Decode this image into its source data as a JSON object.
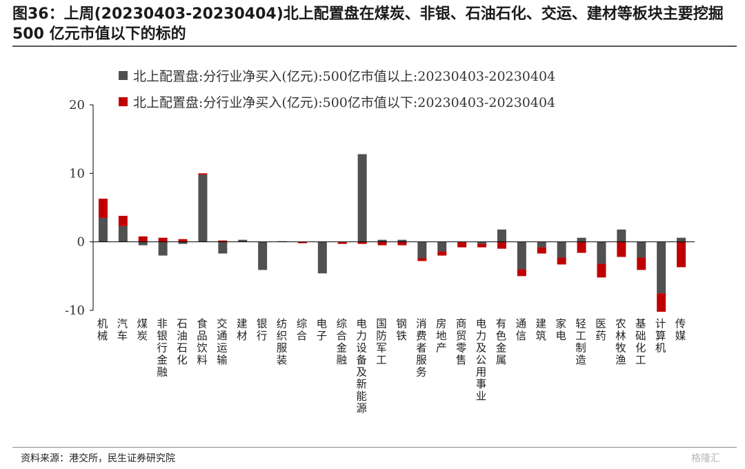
{
  "title": "图36：上周(20230403-20230404)北上配置盘在煤炭、非银、石油石化、交运、建材等板块主要挖掘 500 亿元市值以下的标的",
  "footer": {
    "source": "资料来源：港交所，民生证券研究院",
    "watermark": "格隆汇"
  },
  "colors": {
    "above": "#505050",
    "below": "#c00000",
    "axis": "#000000"
  },
  "chart_data": {
    "type": "bar",
    "stacked": true,
    "ylim": [
      -10,
      20
    ],
    "yticks": [
      20,
      10,
      0,
      -10
    ],
    "xlabel": "",
    "ylabel": "",
    "legend_position": "top-left",
    "categories": [
      "机械",
      "汽车",
      "煤炭",
      "非银行金融",
      "石油石化",
      "食品饮料",
      "交通运输",
      "建材",
      "银行",
      "纺织服装",
      "综合",
      "电子",
      "综合金融",
      "电力设备及新能源",
      "国防军工",
      "钢铁",
      "消费者服务",
      "房地产",
      "商贸零售",
      "电力及公用事业",
      "有色金属",
      "通信",
      "建筑",
      "家电",
      "轻工制造",
      "医药",
      "农林牧渔",
      "基础化工",
      "计算机",
      "传媒"
    ],
    "series": [
      {
        "name": "北上配置盘:分行业净买入(亿元):500亿市值以上:20230403-20230404",
        "values": [
          3.5,
          2.3,
          -0.5,
          -2.0,
          -0.3,
          9.8,
          -1.7,
          0.3,
          -4.1,
          0.1,
          0.0,
          -4.6,
          0.0,
          12.8,
          0.3,
          0.3,
          -2.4,
          -1.4,
          0.0,
          -0.3,
          1.8,
          -4.0,
          -0.8,
          -2.3,
          0.6,
          -3.2,
          1.8,
          -2.3,
          -7.5,
          0.6
        ]
      },
      {
        "name": "北上配置盘:分行业净买入(亿元):500亿市值以下:20230403-20230404",
        "values": [
          2.8,
          1.5,
          0.8,
          0.6,
          0.4,
          0.2,
          0.2,
          0.0,
          0.0,
          0.0,
          -0.2,
          0.0,
          -0.3,
          -0.3,
          -0.5,
          -0.5,
          -0.4,
          -0.6,
          -0.8,
          -0.5,
          -1.0,
          -1.0,
          -0.9,
          -1.0,
          -1.6,
          -2.0,
          -2.2,
          -1.8,
          -2.7,
          -3.7
        ]
      }
    ]
  }
}
